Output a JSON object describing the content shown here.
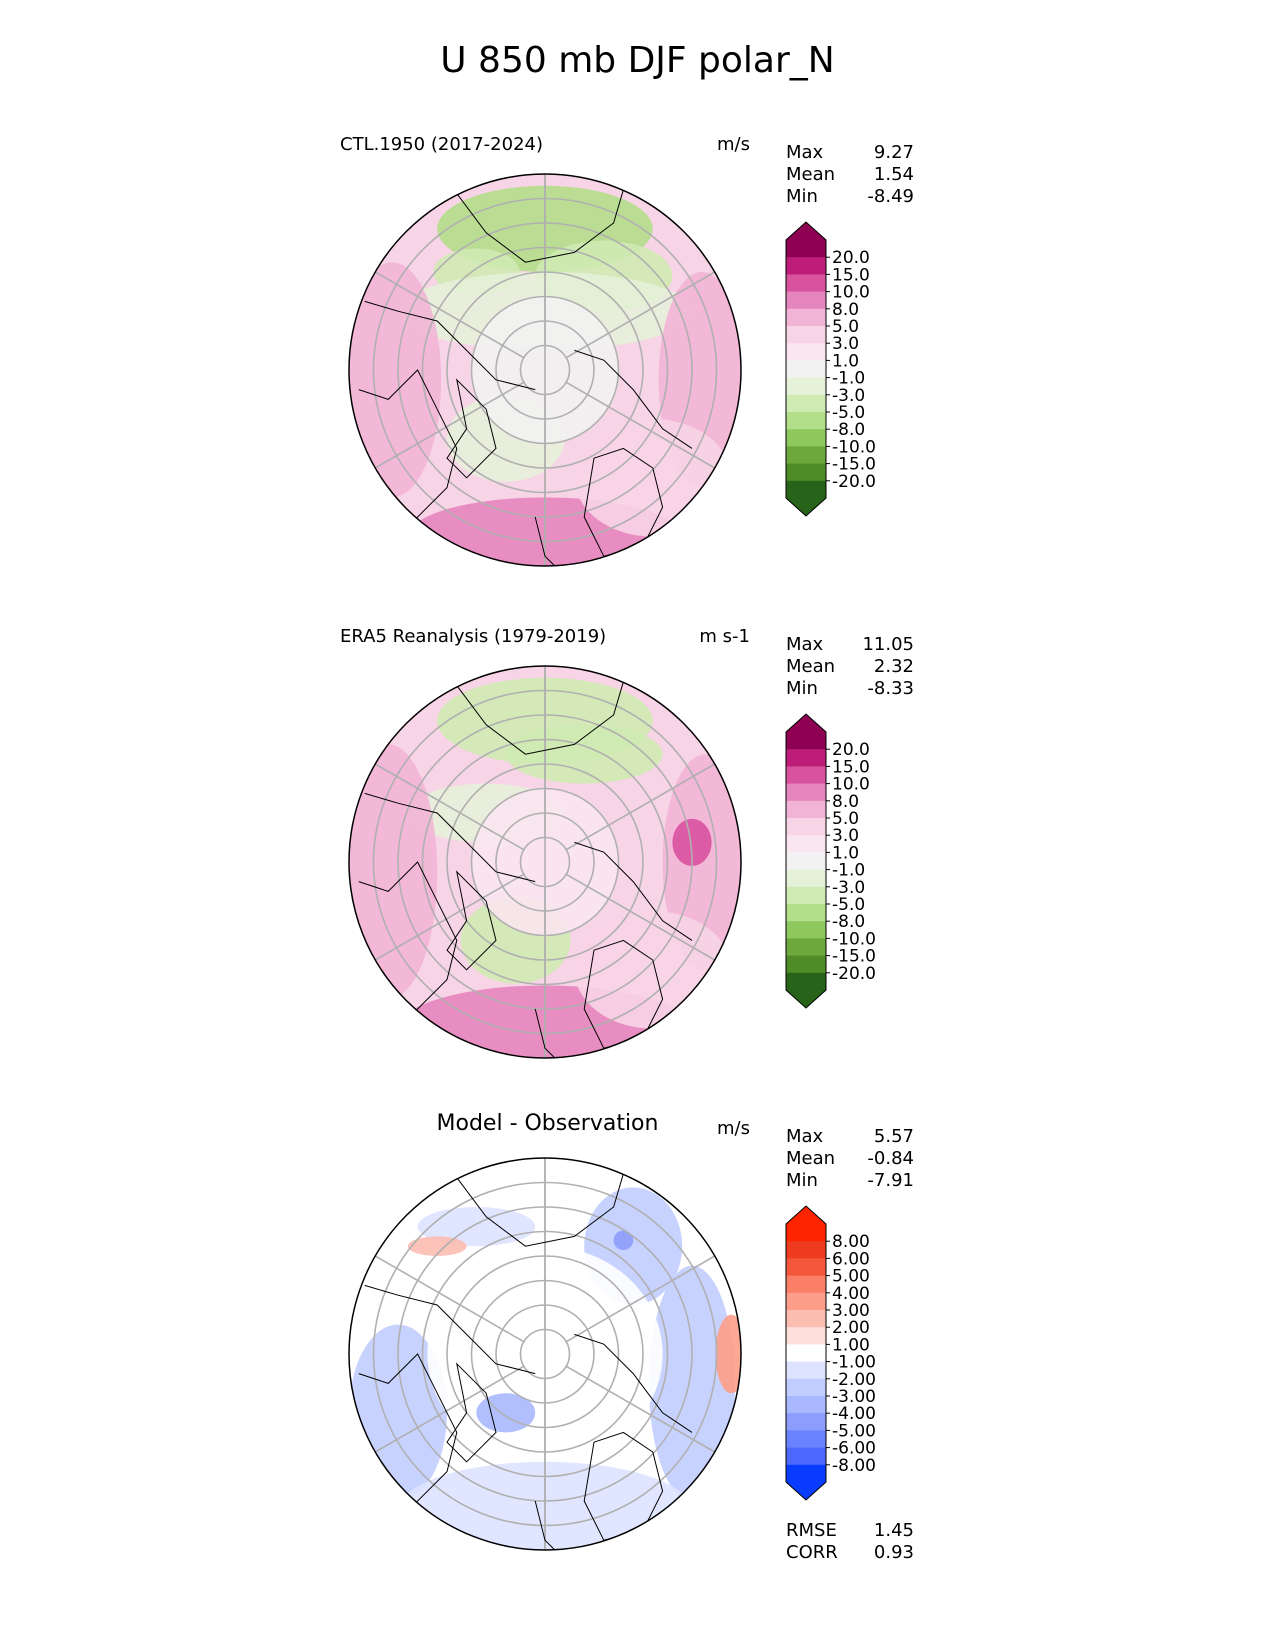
{
  "title": "U 850 mb DJF polar_N",
  "colors": {
    "pos_levels": [
      "#f2f2f2",
      "#fae6f0",
      "#f7d4e6",
      "#f2b4d6",
      "#e585be",
      "#d8529e",
      "#bd1d79",
      "#8e0152"
    ],
    "neg_levels": [
      "#f2f2f2",
      "#e5f1d9",
      "#cfeab3",
      "#b3de8a",
      "#8fc85f",
      "#6da83c",
      "#4f8c27",
      "#276419"
    ],
    "diff_pos": [
      "#ffffff",
      "#fde0dc",
      "#fcbdb1",
      "#fc9e8a",
      "#fb7e66",
      "#f5573d",
      "#ee3a1f",
      "#ff2400"
    ],
    "diff_neg": [
      "#ffffff",
      "#dde3ff",
      "#c2cdff",
      "#a9b8ff",
      "#8d9dfb",
      "#6a82ff",
      "#4c68ff",
      "#0a3cff"
    ],
    "land_outline": "#000000",
    "graticule": "#b0b0b0"
  },
  "panels": [
    {
      "title": "CTL.1950 (2017-2024)",
      "units": "m/s",
      "stats": [
        {
          "label": "Max",
          "value": "9.27"
        },
        {
          "label": "Mean",
          "value": "1.54"
        },
        {
          "label": "Min",
          "value": "-8.49"
        }
      ],
      "colorbar_type": "field"
    },
    {
      "title": "ERA5 Reanalysis (1979-2019)",
      "units": "m s-1",
      "stats": [
        {
          "label": "Max",
          "value": "11.05"
        },
        {
          "label": "Mean",
          "value": "2.32"
        },
        {
          "label": "Min",
          "value": "-8.33"
        }
      ],
      "colorbar_type": "field"
    },
    {
      "title": "Model - Observation",
      "units": "m/s",
      "stats": [
        {
          "label": "Max",
          "value": "5.57"
        },
        {
          "label": "Mean",
          "value": "-0.84"
        },
        {
          "label": "Min",
          "value": "-7.91"
        }
      ],
      "colorbar_type": "diff",
      "extra_stats": [
        {
          "label": "RMSE",
          "value": "1.45"
        },
        {
          "label": "CORR",
          "value": "0.93"
        }
      ]
    }
  ],
  "chart_data": [
    {
      "type": "heatmap",
      "projection": "north polar stereographic",
      "title": "CTL.1950 (2017-2024)",
      "units": "m/s",
      "colorbar_ticks": [
        "20.0",
        "15.0",
        "10.0",
        "8.0",
        "5.0",
        "3.0",
        "1.0",
        "-1.0",
        "-3.0",
        "-5.0",
        "-8.0",
        "-10.0",
        "-15.0",
        "-20.0"
      ],
      "max": 9.27,
      "mean": 1.54,
      "min": -8.49
    },
    {
      "type": "heatmap",
      "projection": "north polar stereographic",
      "title": "ERA5 Reanalysis (1979-2019)",
      "units": "m s-1",
      "colorbar_ticks": [
        "20.0",
        "15.0",
        "10.0",
        "8.0",
        "5.0",
        "3.0",
        "1.0",
        "-1.0",
        "-3.0",
        "-5.0",
        "-8.0",
        "-10.0",
        "-15.0",
        "-20.0"
      ],
      "max": 11.05,
      "mean": 2.32,
      "min": -8.33
    },
    {
      "type": "heatmap",
      "projection": "north polar stereographic",
      "title": "Model - Observation",
      "units": "m/s",
      "colorbar_ticks": [
        "8.00",
        "6.00",
        "5.00",
        "4.00",
        "3.00",
        "2.00",
        "1.00",
        "-1.00",
        "-2.00",
        "-3.00",
        "-4.00",
        "-5.00",
        "-6.00",
        "-8.00"
      ],
      "max": 5.57,
      "mean": -0.84,
      "min": -7.91,
      "rmse": 1.45,
      "corr": 0.93
    }
  ]
}
